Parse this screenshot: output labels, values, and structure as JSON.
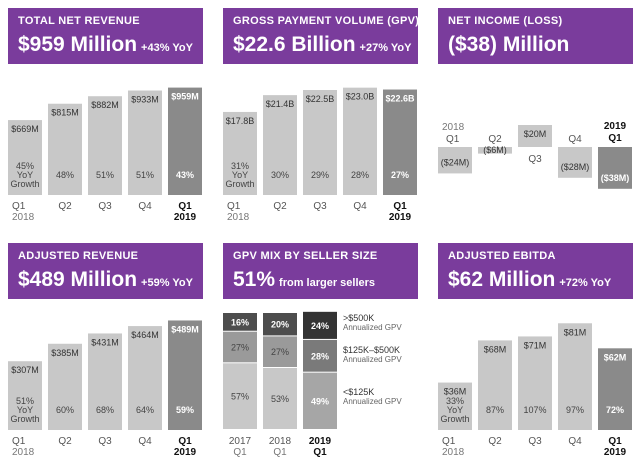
{
  "colors": {
    "header_bg": "#7a3c9c",
    "bar_light": "#c8c8c8",
    "bar_dark": "#8a8a8a",
    "seg_top": "#4d4d4d",
    "seg_mid": "#9a9a9a",
    "seg_bot": "#c8c8c8",
    "seg_top_cur": "#333333",
    "seg_mid_cur": "#7a7a7a",
    "seg_bot_cur": "#a6a6a6"
  },
  "panels": [
    {
      "id": "total-net-revenue",
      "label": "TOTAL NET REVENUE",
      "value": "$959 Million",
      "sub": "+43% YoY"
    },
    {
      "id": "gpv",
      "label": "GROSS PAYMENT VOLUME (GPV)",
      "value": "$22.6 Billion",
      "sub": "+27% YoY"
    },
    {
      "id": "net-income",
      "label": "NET INCOME (LOSS)",
      "value": "($38) Million",
      "sub": ""
    },
    {
      "id": "adjusted-revenue",
      "label": "ADJUSTED REVENUE",
      "value": "$489 Million",
      "sub": "+59% YoY"
    },
    {
      "id": "gpv-mix",
      "label": "GPV MIX BY SELLER SIZE",
      "value": "51%",
      "sub": "from larger sellers"
    },
    {
      "id": "adjusted-ebitda",
      "label": "ADJUSTED EBITDA",
      "value": "$62 Million",
      "sub": "+72% YoY"
    }
  ],
  "chart_data": [
    {
      "type": "bar",
      "panel": "total-net-revenue",
      "categories": [
        "Q1 2018",
        "Q2",
        "Q3",
        "Q4",
        "Q1 2019"
      ],
      "values": [
        669,
        815,
        882,
        933,
        959
      ],
      "value_labels": [
        "$669M",
        "$815M",
        "$882M",
        "$933M",
        "$959M"
      ],
      "growth_labels": [
        "45%",
        "48%",
        "51%",
        "51%",
        "43%"
      ],
      "growth_caption": [
        "YoY",
        "Growth"
      ],
      "ylim": [
        0,
        1000
      ],
      "highlight_index": 4
    },
    {
      "type": "bar",
      "panel": "gpv",
      "categories": [
        "Q1 2018",
        "Q2",
        "Q3",
        "Q4",
        "Q1 2019"
      ],
      "values": [
        17.8,
        21.4,
        22.5,
        23.0,
        22.6
      ],
      "value_labels": [
        "$17.8B",
        "$21.4B",
        "$22.5B",
        "$23.0B",
        "$22.6B"
      ],
      "growth_labels": [
        "31%",
        "30%",
        "29%",
        "28%",
        "27%"
      ],
      "growth_caption": [
        "YoY",
        "Growth"
      ],
      "ylim": [
        0,
        24
      ],
      "highlight_index": 4
    },
    {
      "type": "bar",
      "panel": "net-income",
      "categories": [
        "Q1 2018",
        "Q2",
        "Q3",
        "Q4",
        "Q1 2019"
      ],
      "values": [
        -24,
        -6,
        20,
        -28,
        -38
      ],
      "value_labels": [
        "($24M)",
        "($6M)",
        "$20M",
        "($28M)",
        "($38M)"
      ],
      "ylim": [
        -40,
        25
      ],
      "highlight_index": 4
    },
    {
      "type": "bar",
      "panel": "adjusted-revenue",
      "categories": [
        "Q1 2018",
        "Q2",
        "Q3",
        "Q4",
        "Q1 2019"
      ],
      "values": [
        307,
        385,
        431,
        464,
        489
      ],
      "value_labels": [
        "$307M",
        "$385M",
        "$431M",
        "$464M",
        "$489M"
      ],
      "growth_labels": [
        "51%",
        "60%",
        "68%",
        "64%",
        "59%"
      ],
      "growth_caption": [
        "YoY",
        "Growth"
      ],
      "ylim": [
        0,
        500
      ],
      "highlight_index": 4
    },
    {
      "type": "bar",
      "stacked": true,
      "panel": "gpv-mix",
      "categories": [
        "2017 Q1",
        "2018 Q1",
        "2019 Q1"
      ],
      "series": [
        {
          "name": "<$125K Annualized GPV",
          "values": [
            57,
            53,
            49
          ]
        },
        {
          "name": "$125K–$500K Annualized GPV",
          "values": [
            27,
            27,
            28
          ]
        },
        {
          "name": ">$500K Annualized GPV",
          "values": [
            16,
            20,
            24
          ]
        }
      ],
      "ylim": [
        0,
        100
      ],
      "highlight_index": 2
    },
    {
      "type": "bar",
      "panel": "adjusted-ebitda",
      "categories": [
        "Q1 2018",
        "Q2",
        "Q3",
        "Q4",
        "Q1 2019"
      ],
      "values": [
        36,
        68,
        71,
        81,
        62
      ],
      "value_labels": [
        "$36M",
        "$68M",
        "$71M",
        "$81M",
        "$62M"
      ],
      "growth_labels": [
        "33%",
        "87%",
        "107%",
        "97%",
        "72%"
      ],
      "growth_caption": [
        "YoY",
        "Growth"
      ],
      "ylim": [
        0,
        85
      ],
      "highlight_index": 4
    }
  ]
}
